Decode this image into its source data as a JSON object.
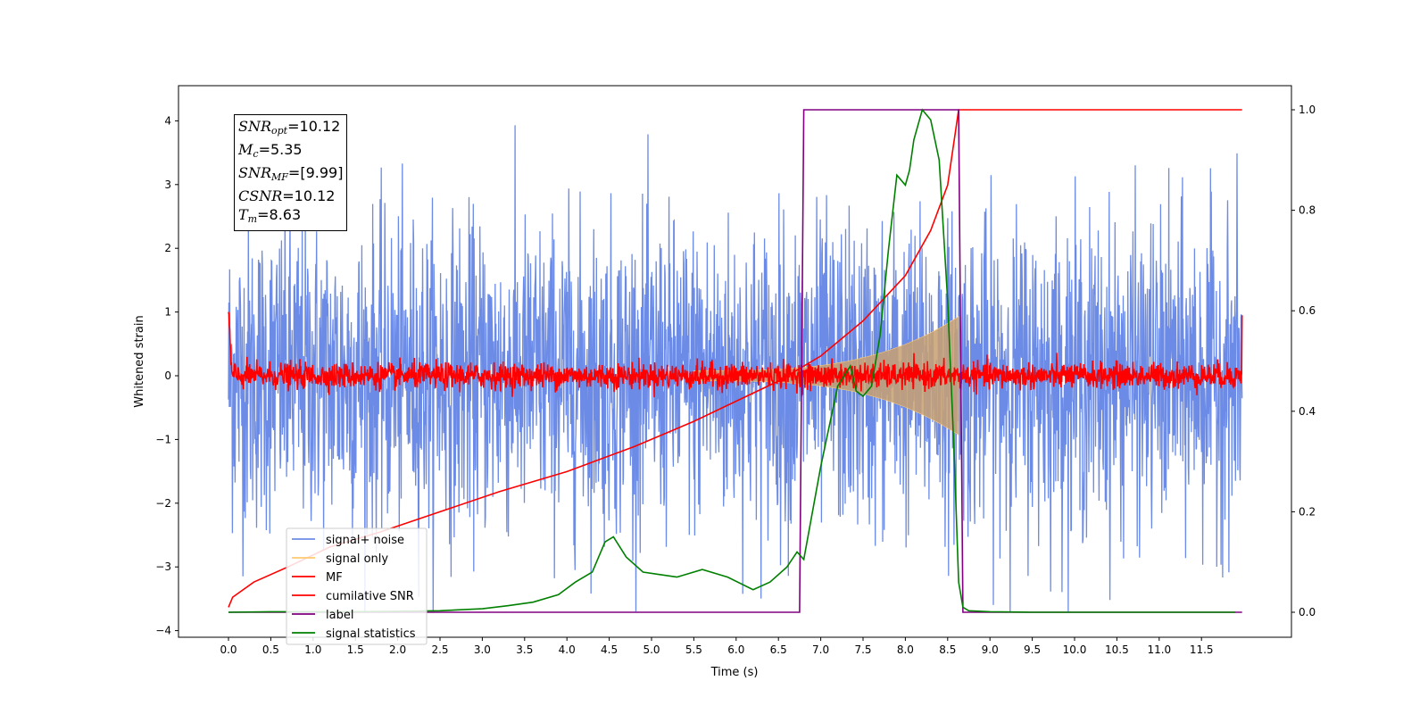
{
  "chart_data": {
    "type": "line",
    "xlabel": "Time (s)",
    "ylabel": "Whitened strain",
    "xlim": [
      -0.6,
      12.3
    ],
    "ylim_left": [
      -4.1,
      4.5
    ],
    "ylim_right": [
      -0.05,
      1.04
    ],
    "xticks": [
      "0.0",
      "0.5",
      "1.0",
      "1.5",
      "2.0",
      "2.5",
      "3.0",
      "3.5",
      "4.0",
      "4.5",
      "5.0",
      "5.5",
      "6.0",
      "6.5",
      "7.0",
      "7.5",
      "8.0",
      "8.5",
      "9.0",
      "9.5",
      "10.0",
      "10.5",
      "11.0",
      "11.5"
    ],
    "yticks_left": [
      "4",
      "3",
      "2",
      "1",
      "0",
      "−1",
      "−2",
      "−3",
      "−4"
    ],
    "yticks_right": [
      "1.0",
      "0.8",
      "0.6",
      "0.4",
      "0.2",
      "0.0"
    ],
    "legend_position": "lower left",
    "info_box": {
      "snr_opt": "=10.12",
      "mc": "=5.35",
      "snr_mf": "=[9.99]",
      "csnr": "=10.12",
      "tm": "=8.63"
    },
    "series": [
      {
        "name": "signal+ noise",
        "color": "#6b8be6",
        "axis": "left",
        "kind": "noise",
        "t_range": [
          0,
          11.98
        ],
        "envelope_typical": 1.2,
        "envelope_max": 4.15
      },
      {
        "name": "signal only",
        "color": "#ffc870",
        "axis": "left",
        "kind": "chirp",
        "t_range": [
          5.5,
          8.63
        ],
        "amplitude_end": 0.85
      },
      {
        "name": "MF",
        "color": "#ff0000",
        "axis": "left",
        "kind": "noise",
        "t_range": [
          0,
          11.98
        ],
        "envelope_typical": 0.1,
        "start_value": 1.0,
        "end_value": 0.95
      },
      {
        "name": "cumilative SNR",
        "color": "#ff0000",
        "axis": "right",
        "x": [
          0.0,
          0.05,
          0.3,
          0.7,
          1.2,
          1.8,
          2.5,
          3.2,
          4.0,
          4.8,
          5.5,
          6.0,
          6.5,
          7.0,
          7.5,
          8.0,
          8.3,
          8.5,
          8.63,
          11.98
        ],
        "y": [
          0.01,
          0.03,
          0.06,
          0.09,
          0.13,
          0.16,
          0.2,
          0.24,
          0.28,
          0.33,
          0.38,
          0.42,
          0.46,
          0.51,
          0.58,
          0.67,
          0.76,
          0.85,
          1.0,
          1.0
        ]
      },
      {
        "name": "label",
        "color": "#800080",
        "axis": "right",
        "x": [
          0.0,
          6.75,
          6.8,
          8.63,
          8.68,
          11.98
        ],
        "y": [
          0.0,
          0.0,
          1.0,
          1.0,
          0.0,
          0.0
        ]
      },
      {
        "name": "signal statistics",
        "color": "#008000",
        "axis": "right",
        "x": [
          0.0,
          0.5,
          1.0,
          1.5,
          2.0,
          2.5,
          3.0,
          3.3,
          3.6,
          3.9,
          4.1,
          4.3,
          4.45,
          4.55,
          4.7,
          4.9,
          5.1,
          5.3,
          5.6,
          5.9,
          6.2,
          6.4,
          6.6,
          6.72,
          6.8,
          7.0,
          7.2,
          7.35,
          7.42,
          7.5,
          7.6,
          7.7,
          7.8,
          7.9,
          8.0,
          8.05,
          8.1,
          8.2,
          8.3,
          8.4,
          8.5,
          8.58,
          8.63,
          8.68,
          8.75,
          9.0,
          9.5,
          11.9
        ],
        "y": [
          0.0,
          0.001,
          0.001,
          0.001,
          0.002,
          0.003,
          0.007,
          0.013,
          0.02,
          0.035,
          0.06,
          0.08,
          0.14,
          0.15,
          0.11,
          0.08,
          0.075,
          0.07,
          0.085,
          0.07,
          0.045,
          0.06,
          0.09,
          0.12,
          0.105,
          0.29,
          0.45,
          0.49,
          0.44,
          0.43,
          0.45,
          0.55,
          0.72,
          0.87,
          0.85,
          0.88,
          0.94,
          1.0,
          0.98,
          0.9,
          0.62,
          0.3,
          0.06,
          0.01,
          0.003,
          0.001,
          0.0,
          0.0
        ]
      }
    ]
  }
}
